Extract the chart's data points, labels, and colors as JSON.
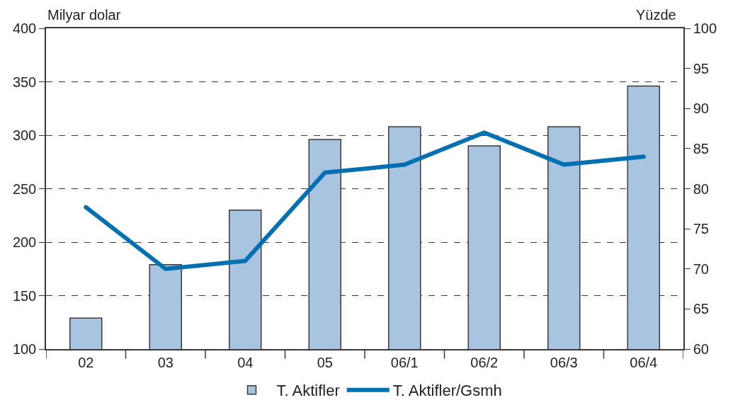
{
  "chart_data": {
    "type": "bar",
    "ylabel": "Milyar dolar",
    "y2label": "Yüzde",
    "categories": [
      "02",
      "03",
      "04",
      "05",
      "06/1",
      "06/2",
      "06/3",
      "06/4"
    ],
    "series": [
      {
        "name": "T. Aktifler",
        "color": "#a8c4e0",
        "values": [
          129,
          179,
          230,
          296,
          308,
          290,
          308,
          346
        ]
      },
      {
        "name": "T. Aktifler/Gsmh",
        "type": "line",
        "axis": "y2",
        "color": "#0070b0",
        "values": [
          77.7,
          70,
          71,
          82,
          83,
          87,
          83,
          84
        ]
      }
    ],
    "ylim": [
      100,
      400
    ],
    "yticks": [
      100,
      150,
      200,
      250,
      300,
      350,
      400
    ],
    "y2lim": [
      60,
      100
    ],
    "y2ticks": [
      60,
      65,
      70,
      75,
      80,
      85,
      90,
      95,
      100
    ],
    "grid": "y",
    "legend": "bottom",
    "line_style": "solid"
  }
}
